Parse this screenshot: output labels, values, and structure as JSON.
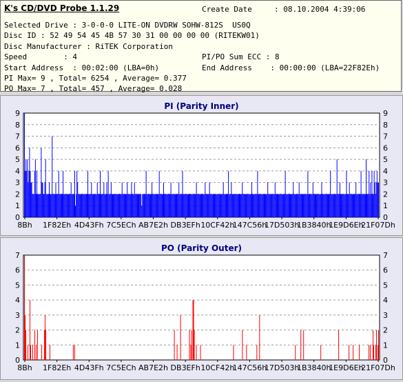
{
  "app": {
    "title": "K's CD/DVD Probe 1.1.29",
    "create_date_label": "Create Date",
    "create_date_value": ": 08.10.2004 4:39:06"
  },
  "info": {
    "line1": "Selected Drive : 3-0-0-0 LITE-ON DVDRW SOHW-812S  US0Q",
    "line2": "Disc ID : 52 49 54 45 4B 57 30 31 00 00 00 00 (RITEKW01)",
    "line3": "Disc Manufacturer : RiTEK Corporation",
    "speed": "Speed        : 4",
    "pipo": "PI/PO Sum ECC : 8",
    "start": "Start Address  : 00:02:00 (LBA=0h)",
    "end": "End Address    : 00:00:00 (LBA=22F82Eh)",
    "pi_stats": "PI Max= 9 , Total= 6254 , Average= 0.377",
    "po_stats": "PO Max= 7 , Total= 457 , Average= 0.028"
  },
  "chart_data": [
    {
      "type": "bar",
      "title": "PI (Parity Inner)",
      "ylim": [
        0,
        9
      ],
      "yticks": [
        "0",
        "1",
        "2",
        "3",
        "4",
        "5",
        "6",
        "7",
        "8",
        "9"
      ],
      "xtick_labels": [
        "8Bh",
        "1F82Eh",
        "4D43Fh",
        "7C5ECh",
        "AB7E2h",
        "DB3EFh",
        "10CF42h",
        "147C56h",
        "17D503h",
        "1B3840h",
        "1E9D6Eh",
        "21F07Dh"
      ],
      "grid": true,
      "color": "#0000ff",
      "values": [
        9,
        4,
        5,
        4,
        5,
        3,
        4,
        6,
        4,
        3,
        3,
        2,
        2,
        2,
        4,
        5,
        2,
        4,
        2,
        2,
        2,
        2,
        2,
        6,
        3,
        3,
        2,
        2,
        3,
        5,
        2,
        2,
        2,
        2,
        3,
        2,
        2,
        2,
        7,
        2,
        2,
        2,
        2,
        3,
        2,
        2,
        2,
        4,
        2,
        2,
        2,
        2,
        2,
        4,
        2,
        2,
        2,
        2,
        2,
        2,
        2,
        2,
        2,
        2,
        3,
        2,
        2,
        2,
        2,
        4,
        1,
        2,
        4,
        3,
        2,
        2,
        2,
        2,
        2,
        2,
        2,
        2,
        2,
        2,
        2,
        2,
        2,
        4,
        2,
        2,
        2,
        2,
        3,
        2,
        2,
        2,
        2,
        2,
        2,
        2,
        3,
        2,
        2,
        2,
        4,
        2,
        2,
        2,
        2,
        3,
        2,
        2,
        2,
        3,
        2,
        4,
        2,
        2,
        2,
        3,
        2,
        2,
        2,
        2,
        2,
        2,
        2,
        2,
        2,
        2,
        2,
        2,
        2,
        2,
        3,
        2,
        2,
        2,
        2,
        2,
        2,
        3,
        2,
        2,
        2,
        2,
        2,
        3,
        2,
        2,
        2,
        3,
        2,
        2,
        2,
        2,
        2,
        2,
        2,
        2,
        2,
        1,
        2,
        2,
        2,
        2,
        2,
        4,
        2,
        2,
        2,
        2,
        2,
        2,
        2,
        3,
        2,
        2,
        2,
        2,
        2,
        2,
        2,
        2,
        2,
        4,
        2,
        2,
        2,
        2,
        2,
        3,
        2,
        2,
        2,
        2,
        2,
        2,
        2,
        2,
        2,
        3,
        2,
        2,
        2,
        2,
        2,
        2,
        2,
        2,
        2,
        2,
        3,
        2,
        2,
        2,
        2,
        4,
        2,
        2,
        2,
        2,
        2,
        2,
        2,
        2,
        2,
        2,
        2,
        2,
        2,
        2,
        2,
        2,
        2,
        2,
        3,
        2,
        2,
        2,
        2,
        2,
        2,
        2,
        2,
        2,
        2,
        2,
        3,
        2,
        2,
        2,
        2,
        2,
        3,
        2,
        2,
        2,
        2,
        2,
        2,
        2,
        2,
        2,
        2,
        2,
        2,
        2,
        2,
        2,
        2,
        2,
        2,
        3,
        2,
        2,
        2,
        2,
        2,
        2,
        4,
        2,
        2,
        2,
        3,
        2,
        2,
        2,
        2,
        2,
        2,
        2,
        2,
        2,
        2,
        2,
        2,
        2,
        2,
        3,
        2,
        2,
        2,
        2,
        2,
        2,
        2,
        2,
        2,
        2,
        2,
        2,
        3,
        2,
        2,
        2,
        2,
        2,
        2,
        2,
        4,
        2,
        2,
        2,
        2,
        2,
        2,
        2,
        2,
        2,
        2,
        2,
        2,
        2,
        3,
        2,
        2,
        2,
        2,
        2,
        2,
        2,
        2,
        2,
        3,
        2,
        2,
        2,
        2,
        2,
        2,
        2,
        2,
        2,
        2,
        2,
        2,
        2,
        4,
        2,
        2,
        2,
        2,
        2,
        2,
        2,
        2,
        2,
        2,
        3,
        2,
        2,
        2,
        2,
        2,
        2,
        2,
        3,
        2,
        2,
        2,
        2,
        2,
        2,
        2,
        2,
        2,
        2,
        2,
        4,
        2,
        2,
        2,
        2,
        2,
        2,
        3,
        2,
        2,
        2,
        2,
        2,
        2,
        2,
        2,
        2,
        2,
        2,
        3,
        2,
        2,
        2,
        2,
        2,
        2,
        2,
        2,
        2,
        2,
        2,
        4,
        2,
        2,
        2,
        2,
        2,
        2,
        2,
        2,
        5,
        2,
        2,
        2,
        3,
        2,
        2,
        2,
        2,
        2,
        2,
        2,
        2,
        4,
        2,
        2,
        2,
        3,
        2,
        2,
        2,
        2,
        2,
        2,
        2,
        2,
        3,
        2,
        2,
        2,
        2,
        2,
        2,
        4,
        2,
        2,
        2,
        2,
        2,
        2,
        5,
        2,
        2,
        2,
        4,
        2,
        3,
        2,
        4,
        2,
        2,
        4,
        3,
        2,
        3,
        4,
        3,
        3
      ]
    },
    {
      "type": "bar",
      "title": "PO (Parity Outer)",
      "ylim": [
        0,
        7
      ],
      "yticks": [
        "0",
        "1",
        "2",
        "3",
        "4",
        "5",
        "6",
        "7"
      ],
      "xtick_labels": [
        "8Bh",
        "1F82Eh",
        "4D43Fh",
        "7C5ECh",
        "AB7E2h",
        "DB3EFh",
        "10CF42h",
        "147C56h",
        "17D503h",
        "1B3840h",
        "1E9D6Eh",
        "21F07Dh"
      ],
      "grid": true,
      "color": "#ff0000",
      "values": [
        7,
        3,
        2,
        0,
        0,
        1,
        0,
        0,
        4,
        1,
        0,
        0,
        1,
        0,
        0,
        2,
        0,
        1,
        0,
        2,
        0,
        0,
        0,
        0,
        0,
        1,
        0,
        0,
        0,
        2,
        3,
        2,
        0,
        0,
        0,
        0,
        0,
        1,
        0,
        0,
        0,
        0,
        0,
        0,
        0,
        0,
        0,
        0,
        0,
        0,
        0,
        0,
        0,
        0,
        0,
        0,
        0,
        0,
        0,
        0,
        0,
        0,
        0,
        0,
        0,
        0,
        0,
        0,
        0,
        0,
        0,
        1,
        0,
        1,
        0,
        0,
        0,
        0,
        0,
        0,
        0,
        0,
        0,
        0,
        0,
        0,
        0,
        0,
        0,
        0,
        0,
        0,
        0,
        0,
        0,
        0,
        0,
        0,
        0,
        0,
        0,
        0,
        0,
        0,
        0,
        0,
        0,
        0,
        0,
        0,
        0,
        0,
        0,
        0,
        0,
        0,
        0,
        0,
        0,
        0,
        0,
        0,
        0,
        0,
        0,
        0,
        0,
        0,
        0,
        0,
        0,
        0,
        0,
        0,
        0,
        0,
        0,
        0,
        0,
        0,
        0,
        0,
        0,
        0,
        0,
        0,
        0,
        0,
        0,
        0,
        0,
        0,
        0,
        0,
        0,
        0,
        0,
        0,
        0,
        0,
        0,
        0,
        0,
        0,
        0,
        0,
        0,
        0,
        0,
        0,
        0,
        0,
        0,
        0,
        0,
        0,
        0,
        0,
        0,
        0,
        0,
        0,
        0,
        0,
        0,
        0,
        0,
        0,
        0,
        0,
        0,
        0,
        0,
        0,
        0,
        0,
        0,
        0,
        0,
        0,
        0,
        0,
        0,
        0,
        0,
        0,
        0,
        0,
        0,
        0,
        0,
        0,
        0,
        0,
        0,
        0,
        0,
        0,
        2,
        0,
        0,
        0,
        1,
        0,
        0,
        0,
        0,
        3,
        0,
        0,
        0,
        0,
        0,
        0,
        0,
        0,
        0,
        0,
        0,
        0,
        2,
        0,
        1,
        2,
        0,
        4,
        4,
        2,
        0,
        0,
        1,
        0,
        0,
        0,
        0,
        0,
        1,
        0,
        0,
        0,
        0,
        0,
        0,
        0,
        0,
        0,
        0,
        0,
        0,
        0,
        0,
        0,
        0,
        0,
        0,
        0,
        0,
        0,
        0,
        0,
        0,
        0,
        0,
        0,
        0,
        0,
        0,
        0,
        0,
        0,
        0,
        0,
        0,
        0,
        0,
        0,
        0,
        0,
        0,
        0,
        0,
        0,
        0,
        0,
        1,
        0,
        0,
        0,
        0,
        0,
        0,
        0,
        0,
        0,
        0,
        0,
        0,
        2,
        0,
        0,
        0,
        0,
        0,
        1,
        0,
        0,
        0,
        0,
        0,
        0,
        0,
        0,
        0,
        0,
        0,
        0,
        0,
        0,
        1,
        0,
        0,
        0,
        3,
        0,
        0,
        0,
        0,
        0,
        0,
        0,
        0,
        0,
        0,
        0,
        0,
        0,
        0,
        0,
        0,
        0,
        0,
        0,
        0,
        0,
        0,
        0,
        0,
        0,
        0,
        0,
        0,
        0,
        0,
        0,
        0,
        0,
        0,
        0,
        0,
        0,
        0,
        0,
        0,
        0,
        0,
        0,
        0,
        0,
        0,
        0,
        0,
        0,
        0,
        0,
        1,
        0,
        0,
        0,
        0,
        0,
        0,
        0,
        2,
        0,
        0,
        0,
        2,
        0,
        0,
        0,
        0,
        0,
        0,
        0,
        0,
        0,
        0,
        0,
        0,
        0,
        0,
        0,
        0,
        0,
        0,
        0,
        0,
        0,
        0,
        0,
        0,
        1,
        0,
        0,
        0,
        0,
        0,
        0,
        0,
        0,
        0,
        0,
        0,
        0,
        0,
        0,
        0,
        0,
        0,
        0,
        0,
        0,
        0,
        0,
        0,
        0,
        0,
        2,
        0,
        0,
        0,
        0,
        0,
        0,
        0,
        0,
        0,
        0,
        0,
        0,
        0,
        0,
        1,
        0,
        0,
        0,
        0,
        0,
        1,
        0,
        0,
        0,
        0,
        0,
        0,
        0,
        0,
        1,
        0,
        0,
        0,
        0,
        0,
        0,
        0,
        0,
        0,
        0,
        0,
        0,
        0,
        1,
        0,
        1,
        0,
        0,
        0,
        2,
        1,
        0,
        0,
        1,
        2,
        0,
        1,
        2
      ]
    }
  ]
}
